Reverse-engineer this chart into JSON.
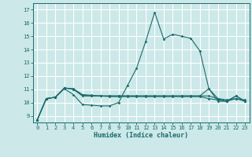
{
  "xlabel": "Humidex (Indice chaleur)",
  "xlim": [
    -0.5,
    23.5
  ],
  "ylim": [
    8.5,
    17.5
  ],
  "yticks": [
    9,
    10,
    11,
    12,
    13,
    14,
    15,
    16,
    17
  ],
  "xticks": [
    0,
    1,
    2,
    3,
    4,
    5,
    6,
    7,
    8,
    9,
    10,
    11,
    12,
    13,
    14,
    15,
    16,
    17,
    18,
    19,
    20,
    21,
    22,
    23
  ],
  "background_color": "#cce8e8",
  "grid_color": "#ffffff",
  "line_color": "#1a6b6b",
  "series": [
    [
      8.7,
      10.3,
      10.4,
      11.1,
      11.05,
      10.6,
      10.55,
      10.5,
      10.5,
      10.5,
      10.5,
      10.5,
      10.5,
      10.5,
      10.5,
      10.5,
      10.5,
      10.5,
      10.5,
      10.5,
      10.3,
      10.2,
      10.3,
      10.2
    ],
    [
      8.7,
      10.3,
      10.4,
      11.1,
      11.0,
      10.55,
      10.5,
      10.5,
      10.45,
      10.45,
      10.45,
      10.45,
      10.45,
      10.45,
      10.45,
      10.45,
      10.45,
      10.45,
      10.45,
      10.3,
      10.2,
      10.1,
      10.3,
      10.1
    ],
    [
      8.7,
      10.3,
      10.4,
      11.05,
      10.6,
      9.85,
      9.8,
      9.75,
      9.75,
      10.0,
      11.3,
      12.6,
      14.6,
      16.8,
      14.8,
      15.15,
      15.0,
      14.85,
      13.9,
      11.05,
      10.1,
      10.1,
      10.5,
      10.1
    ],
    [
      8.7,
      10.3,
      10.4,
      11.1,
      11.0,
      10.5,
      10.5,
      10.5,
      10.5,
      10.5,
      10.5,
      10.5,
      10.5,
      10.5,
      10.5,
      10.5,
      10.5,
      10.5,
      10.5,
      11.05,
      10.3,
      10.1,
      10.5,
      10.1
    ]
  ]
}
